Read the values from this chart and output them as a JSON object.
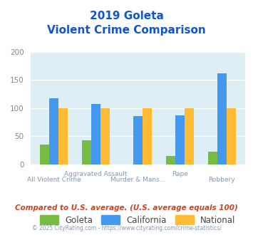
{
  "title_line1": "2019 Goleta",
  "title_line2": "Violent Crime Comparison",
  "categories": [
    "All Violent Crime",
    "Aggravated Assault",
    "Murder & Mans...",
    "Rape",
    "Robbery"
  ],
  "goleta": [
    35,
    43,
    0,
    15,
    23
  ],
  "california": [
    117,
    107,
    86,
    87,
    162
  ],
  "national": [
    100,
    100,
    100,
    100,
    100
  ],
  "goleta_color": "#77bb44",
  "california_color": "#4499ee",
  "national_color": "#ffbb33",
  "bg_color": "#ddeef5",
  "ylim": [
    0,
    200
  ],
  "yticks": [
    0,
    50,
    100,
    150,
    200
  ],
  "title_color": "#1155cc",
  "xlabel_color": "#8899aa",
  "ytick_color": "#888888",
  "footer_text": "Compared to U.S. average. (U.S. average equals 100)",
  "footer_color": "#cc4422",
  "copyright_text": "© 2025 CityRating.com - https://www.cityrating.com/crime-statistics/",
  "copyright_color": "#8899aa",
  "legend_labels": [
    "Goleta",
    "California",
    "National"
  ],
  "bar_width": 0.22
}
